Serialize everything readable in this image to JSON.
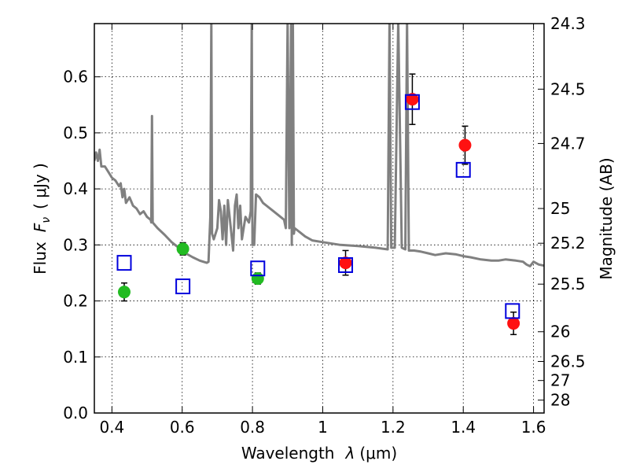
{
  "chart_data": {
    "type": "scatter",
    "xlabel": "Wavelength",
    "xlabel_symbol": "λ",
    "xlabel_unit": "(μm)",
    "ylabel": "Flux",
    "ylabel_symbol": "F",
    "ylabel_symbol_subscript": "ν",
    "ylabel_unit": "( μJy )",
    "y2label": "Magnitude (AB)",
    "xlim": [
      0.35,
      1.63
    ],
    "ylim": [
      0.0,
      0.695
    ],
    "grid": true,
    "x_ticks": [
      0.4,
      0.6,
      0.8,
      1.0,
      1.2,
      1.4,
      1.6
    ],
    "x_tick_labels": [
      "0.4",
      "0.6",
      "0.8",
      "1",
      "1.2",
      "1.4",
      "1.6"
    ],
    "y_ticks": [
      0.0,
      0.1,
      0.2,
      0.3,
      0.4,
      0.5,
      0.6
    ],
    "y_tick_labels": [
      "0.0",
      "0.1",
      "0.2",
      "0.3",
      "0.4",
      "0.5",
      "0.6"
    ],
    "y2_ticks": [
      {
        "label": "24.3",
        "flux": 0.695
      },
      {
        "label": "24.5",
        "flux": 0.578
      },
      {
        "label": "24.7",
        "flux": 0.481
      },
      {
        "label": "25",
        "flux": 0.365
      },
      {
        "label": "25.2",
        "flux": 0.303
      },
      {
        "label": "25.5",
        "flux": 0.23
      },
      {
        "label": "26",
        "flux": 0.145
      },
      {
        "label": "26.5",
        "flux": 0.092
      },
      {
        "label": "27",
        "flux": 0.058
      },
      {
        "label": "28",
        "flux": 0.023
      }
    ],
    "series": [
      {
        "marker": "circle",
        "color": "#22bb22",
        "points": [
          {
            "x": 0.435,
            "y": 0.216,
            "err": 0.016
          },
          {
            "x": 0.602,
            "y": 0.293,
            "err": 0.011
          },
          {
            "x": 0.815,
            "y": 0.24,
            "err": 0.01
          }
        ]
      },
      {
        "marker": "circle",
        "color": "#ff1111",
        "points": [
          {
            "x": 1.065,
            "y": 0.268,
            "err": 0.022
          },
          {
            "x": 1.255,
            "y": 0.56,
            "err": 0.045
          },
          {
            "x": 1.405,
            "y": 0.478,
            "err": 0.034
          },
          {
            "x": 1.543,
            "y": 0.16,
            "err": 0.02
          }
        ]
      },
      {
        "marker": "open-square",
        "color": "#0000dd",
        "points": [
          {
            "x": 0.435,
            "y": 0.268
          },
          {
            "x": 0.602,
            "y": 0.226
          },
          {
            "x": 0.815,
            "y": 0.258
          },
          {
            "x": 1.065,
            "y": 0.264
          },
          {
            "x": 1.255,
            "y": 0.555
          },
          {
            "x": 1.4,
            "y": 0.434
          },
          {
            "x": 1.54,
            "y": 0.182
          }
        ]
      },
      {
        "marker": "line",
        "color": "#808080",
        "points": [
          [
            0.35,
            0.45
          ],
          [
            0.355,
            0.465
          ],
          [
            0.36,
            0.45
          ],
          [
            0.365,
            0.47
          ],
          [
            0.37,
            0.44
          ],
          [
            0.38,
            0.44
          ],
          [
            0.39,
            0.43
          ],
          [
            0.4,
            0.42
          ],
          [
            0.41,
            0.415
          ],
          [
            0.42,
            0.405
          ],
          [
            0.425,
            0.41
          ],
          [
            0.43,
            0.385
          ],
          [
            0.435,
            0.4
          ],
          [
            0.44,
            0.375
          ],
          [
            0.45,
            0.385
          ],
          [
            0.46,
            0.37
          ],
          [
            0.47,
            0.365
          ],
          [
            0.48,
            0.355
          ],
          [
            0.49,
            0.36
          ],
          [
            0.5,
            0.35
          ],
          [
            0.51,
            0.345
          ],
          [
            0.512,
            0.34
          ],
          [
            0.514,
            0.53
          ],
          [
            0.516,
            0.34
          ],
          [
            0.53,
            0.33
          ],
          [
            0.55,
            0.318
          ],
          [
            0.57,
            0.305
          ],
          [
            0.59,
            0.295
          ],
          [
            0.61,
            0.285
          ],
          [
            0.63,
            0.278
          ],
          [
            0.65,
            0.272
          ],
          [
            0.67,
            0.268
          ],
          [
            0.675,
            0.27
          ],
          [
            0.68,
            0.35
          ],
          [
            0.683,
            0.7
          ],
          [
            0.685,
            0.32
          ],
          [
            0.69,
            0.31
          ],
          [
            0.7,
            0.33
          ],
          [
            0.705,
            0.38
          ],
          [
            0.71,
            0.36
          ],
          [
            0.715,
            0.31
          ],
          [
            0.72,
            0.37
          ],
          [
            0.725,
            0.3
          ],
          [
            0.73,
            0.38
          ],
          [
            0.74,
            0.32
          ],
          [
            0.745,
            0.29
          ],
          [
            0.75,
            0.37
          ],
          [
            0.755,
            0.39
          ],
          [
            0.76,
            0.33
          ],
          [
            0.765,
            0.37
          ],
          [
            0.77,
            0.31
          ],
          [
            0.775,
            0.33
          ],
          [
            0.78,
            0.35
          ],
          [
            0.79,
            0.34
          ],
          [
            0.795,
            0.36
          ],
          [
            0.798,
            0.7
          ],
          [
            0.8,
            0.3
          ],
          [
            0.805,
            0.3
          ],
          [
            0.81,
            0.39
          ],
          [
            0.82,
            0.385
          ],
          [
            0.83,
            0.375
          ],
          [
            0.84,
            0.37
          ],
          [
            0.86,
            0.36
          ],
          [
            0.88,
            0.35
          ],
          [
            0.89,
            0.345
          ],
          [
            0.895,
            0.33
          ],
          [
            0.9,
            0.7
          ],
          [
            0.905,
            0.33
          ],
          [
            0.91,
            0.7
          ],
          [
            0.912,
            0.3
          ],
          [
            0.915,
            0.7
          ],
          [
            0.918,
            0.32
          ],
          [
            0.92,
            0.33
          ],
          [
            0.93,
            0.325
          ],
          [
            0.95,
            0.315
          ],
          [
            0.97,
            0.308
          ],
          [
            1.0,
            0.305
          ],
          [
            1.02,
            0.303
          ],
          [
            1.05,
            0.3
          ],
          [
            1.1,
            0.298
          ],
          [
            1.15,
            0.295
          ],
          [
            1.185,
            0.292
          ],
          [
            1.19,
            0.7
          ],
          [
            1.195,
            0.295
          ],
          [
            1.205,
            0.295
          ],
          [
            1.215,
            0.7
          ],
          [
            1.225,
            0.295
          ],
          [
            1.235,
            0.292
          ],
          [
            1.24,
            0.7
          ],
          [
            1.245,
            0.29
          ],
          [
            1.26,
            0.29
          ],
          [
            1.28,
            0.288
          ],
          [
            1.3,
            0.285
          ],
          [
            1.32,
            0.282
          ],
          [
            1.35,
            0.285
          ],
          [
            1.38,
            0.283
          ],
          [
            1.4,
            0.28
          ],
          [
            1.42,
            0.278
          ],
          [
            1.45,
            0.274
          ],
          [
            1.48,
            0.272
          ],
          [
            1.5,
            0.272
          ],
          [
            1.52,
            0.274
          ],
          [
            1.55,
            0.272
          ],
          [
            1.57,
            0.27
          ],
          [
            1.58,
            0.265
          ],
          [
            1.59,
            0.262
          ],
          [
            1.6,
            0.27
          ],
          [
            1.615,
            0.265
          ],
          [
            1.63,
            0.263
          ]
        ]
      }
    ]
  }
}
